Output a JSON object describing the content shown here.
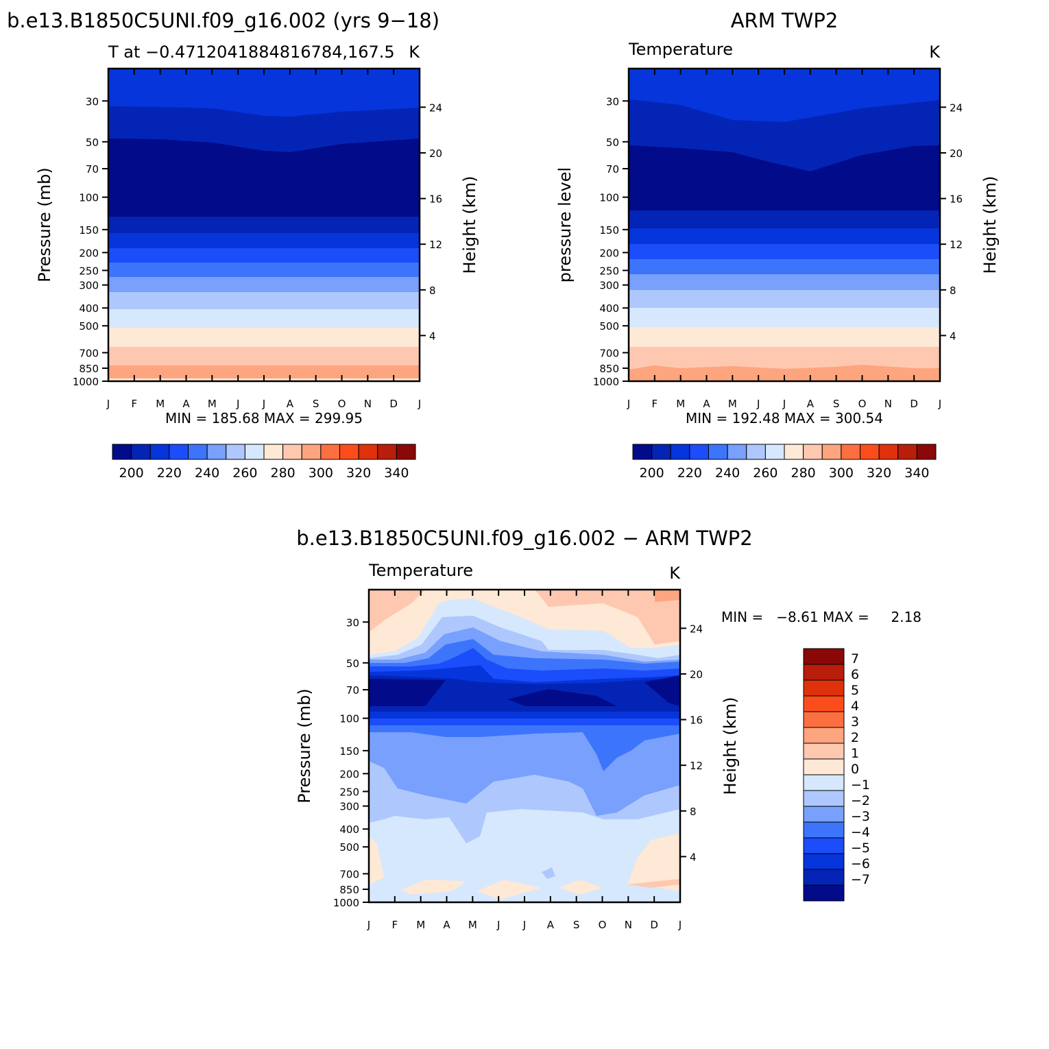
{
  "chart_data": [
    {
      "type": "contour",
      "id": "model",
      "title": "b.e13.B1850C5UNI.f09_g16.002 (yrs 9−18)",
      "subtitle_left": "T at −0.4712041884816784,167.5",
      "subtitle_right": "K",
      "ylabel_left": "Pressure (mb)",
      "ylabel_right": "Height (km)",
      "x_ticks": [
        "J",
        "F",
        "M",
        "A",
        "M",
        "J",
        "J",
        "A",
        "S",
        "O",
        "N",
        "D",
        "J"
      ],
      "pressure_ticks": [
        30,
        50,
        70,
        100,
        150,
        200,
        250,
        300,
        400,
        500,
        700,
        850,
        1000
      ],
      "height_ticks": [
        4,
        8,
        12,
        16,
        20,
        24
      ],
      "ylim_mb": [
        20,
        1000
      ],
      "contour_levels": [
        200,
        210,
        220,
        230,
        240,
        250,
        260,
        270,
        280,
        290,
        300,
        310,
        320,
        330,
        340
      ],
      "boundaries_mb": {
        "x": [
          0,
          2,
          4,
          6,
          8,
          10,
          12
        ],
        "190": [
          57,
          57,
          58,
          66,
          65,
          59,
          57
        ],
        "200": [
          37,
          37,
          38,
          41,
          40,
          38,
          37
        ],
        "210": [
          140,
          140,
          140,
          141,
          142,
          140,
          140
        ],
        "220": [
          172,
          172,
          172,
          172,
          176,
          172,
          172
        ],
        "230": [
          215,
          215,
          216,
          216,
          222,
          216,
          215
        ],
        "240": [
          263,
          263,
          264,
          263,
          270,
          264,
          263
        ],
        "250": [
          323,
          323,
          325,
          323,
          332,
          325,
          323
        ],
        "260": [
          405,
          405,
          408,
          405,
          415,
          408,
          405
        ],
        "270": [
          518,
          518,
          520,
          518,
          525,
          520,
          518
        ],
        "280": [
          660,
          660,
          662,
          660,
          665,
          662,
          660
        ],
        "290": [
          830,
          830,
          835,
          832,
          838,
          835,
          830
        ],
        "300": [
          993,
          993,
          993,
          993,
          993,
          993,
          993
        ]
      },
      "min_label": "MIN = 185.68 MAX = 299.95",
      "colorbar_labels": [
        "200",
        "220",
        "240",
        "260",
        "280",
        "300",
        "320",
        "340"
      ]
    },
    {
      "type": "contour",
      "id": "obs",
      "title": "ARM TWP2",
      "subtitle_left": "Temperature",
      "subtitle_right": "K",
      "ylabel_left": "pressure level",
      "ylabel_right": "Height (km)",
      "x_ticks": [
        "J",
        "F",
        "M",
        "A",
        "M",
        "J",
        "J",
        "A",
        "S",
        "O",
        "N",
        "D",
        "J"
      ],
      "pressure_ticks": [
        30,
        50,
        70,
        100,
        150,
        200,
        250,
        300,
        400,
        500,
        700,
        850,
        1000
      ],
      "height_ticks": [
        4,
        8,
        12,
        16,
        20,
        24
      ],
      "ylim_mb": [
        20,
        1000
      ],
      "contour_levels": [
        200,
        210,
        220,
        230,
        240,
        250,
        260,
        270,
        280,
        290,
        300,
        310,
        320,
        330,
        340
      ],
      "boundaries_mb": {
        "x": [
          0,
          2,
          4,
          5.5,
          7,
          9,
          11,
          12
        ],
        "190": [
          58,
          60,
          63,
          70,
          80,
          72,
          62,
          58
        ],
        "200": [
          34,
          38,
          42,
          44,
          44,
          40,
          37,
          34
        ],
        "210": [
          130,
          130,
          131,
          132,
          133,
          131,
          130,
          130
        ],
        "220": [
          165,
          165,
          166,
          166,
          168,
          166,
          165,
          165
        ],
        "230": [
          208,
          208,
          210,
          210,
          212,
          210,
          208,
          208
        ],
        "240": [
          255,
          255,
          257,
          257,
          260,
          257,
          255,
          255
        ],
        "250": [
          315,
          315,
          318,
          318,
          322,
          318,
          315,
          315
        ],
        "260": [
          395,
          395,
          398,
          398,
          402,
          398,
          395,
          395
        ],
        "270": [
          505,
          505,
          508,
          508,
          512,
          508,
          505,
          505
        ],
        "280": [
          640,
          640,
          645,
          645,
          650,
          645,
          640,
          640
        ],
        "290": [
          825,
          800,
          815,
          810,
          820,
          805,
          815,
          825
        ]
      },
      "min_label": "MIN = 192.48 MAX = 300.54",
      "colorbar_labels": [
        "200",
        "220",
        "240",
        "260",
        "280",
        "300",
        "320",
        "340"
      ]
    },
    {
      "type": "contour",
      "id": "difference",
      "title": "b.e13.B1850C5UNI.f09_g16.002 − ARM TWP2",
      "subtitle_left": "Temperature",
      "subtitle_right": "K",
      "ylabel_left": "Pressure (mb)",
      "ylabel_right": "Height (km)",
      "x_ticks": [
        "J",
        "F",
        "M",
        "A",
        "M",
        "J",
        "J",
        "A",
        "S",
        "O",
        "N",
        "D",
        "J"
      ],
      "pressure_ticks": [
        30,
        50,
        70,
        100,
        150,
        200,
        250,
        300,
        400,
        500,
        700,
        850,
        1000
      ],
      "height_ticks": [
        4,
        8,
        12,
        16,
        20,
        24
      ],
      "ylim_mb": [
        20,
        1000
      ],
      "contour_levels": [
        -7,
        -6,
        -5,
        -4,
        -3,
        -2,
        -1,
        0,
        1,
        2,
        3,
        4,
        5,
        6,
        7
      ],
      "min_label": "MIN =   −8.61 MAX =     2.18",
      "colorbar_labels": [
        "7",
        "6",
        "5",
        "4",
        "3",
        "2",
        "1",
        "0",
        "−1",
        "−2",
        "−3",
        "−4",
        "−5",
        "−6",
        "−7"
      ]
    }
  ],
  "colors": {
    "temperature_palette": [
      "#020b8a",
      "#0424b5",
      "#0535db",
      "#1c4dfa",
      "#3c75fb",
      "#78a0fc",
      "#aec8fd",
      "#d6e8fd",
      "#fee8d6",
      "#fec8b0",
      "#fda57e",
      "#fc6f40",
      "#fb4d1b",
      "#df310c",
      "#b91e0a",
      "#8a0807"
    ],
    "difference_palette": [
      "#020b8a",
      "#0424b5",
      "#0535db",
      "#1c4dfa",
      "#3c75fb",
      "#78a0fc",
      "#aec8fd",
      "#d6e8fd",
      "#fee8d6",
      "#fec8b0",
      "#fda57e",
      "#fc6f40",
      "#fb4d1b",
      "#df310c",
      "#b91e0a",
      "#8a0807"
    ]
  }
}
